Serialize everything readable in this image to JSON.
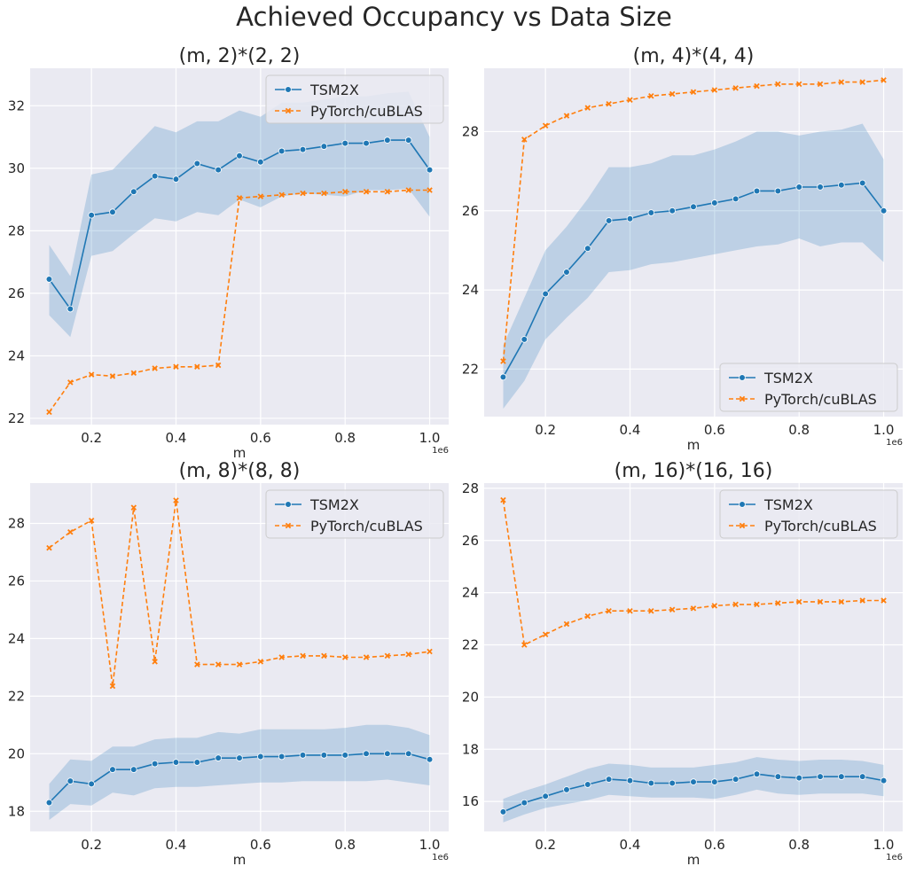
{
  "title": "Achieved Occupancy vs Data Size",
  "colors": {
    "tsm": "#1f77b4",
    "torch": "#ff7f0e",
    "band": "#a5bedb",
    "bg": "#eaeaf2",
    "grid": "#ffffff"
  },
  "chart_data": [
    {
      "type": "line",
      "title": "(m, 2)*(2, 2)",
      "xlabel": "m",
      "x_offset_label": "1e6",
      "x": [
        0.1,
        0.15,
        0.2,
        0.25,
        0.3,
        0.35,
        0.4,
        0.45,
        0.5,
        0.55,
        0.6,
        0.65,
        0.7,
        0.75,
        0.8,
        0.85,
        0.9,
        0.95,
        1.0
      ],
      "xlim": [
        0.055,
        1.045
      ],
      "ylim": [
        21.8,
        33.2
      ],
      "xticks": [
        0.2,
        0.4,
        0.6,
        0.8,
        1.0
      ],
      "yticks": [
        22,
        24,
        26,
        28,
        30,
        32
      ],
      "legend": "top-right",
      "series": [
        {
          "name": "TSM2X",
          "values": [
            26.45,
            25.5,
            28.5,
            28.6,
            29.25,
            29.75,
            29.65,
            30.15,
            29.95,
            30.4,
            30.2,
            30.55,
            30.6,
            30.7,
            30.8,
            30.8,
            30.9,
            30.9,
            29.95
          ],
          "lower": [
            25.3,
            24.6,
            27.2,
            27.35,
            27.9,
            28.4,
            28.3,
            28.6,
            28.5,
            29.0,
            28.75,
            29.1,
            29.2,
            29.15,
            29.1,
            29.3,
            29.3,
            29.35,
            28.45
          ],
          "upper": [
            27.55,
            26.55,
            29.8,
            29.95,
            30.65,
            31.35,
            31.15,
            31.5,
            31.5,
            31.85,
            31.65,
            32.1,
            32.1,
            32.2,
            32.3,
            32.3,
            32.4,
            32.45,
            31.0
          ]
        },
        {
          "name": "PyTorch/cuBLAS",
          "values": [
            22.2,
            23.15,
            23.4,
            23.35,
            23.45,
            23.6,
            23.65,
            23.65,
            23.7,
            29.05,
            29.1,
            29.15,
            29.2,
            29.2,
            29.25,
            29.25,
            29.25,
            29.3,
            29.3
          ]
        }
      ]
    },
    {
      "type": "line",
      "title": "(m, 4)*(4, 4)",
      "xlabel": "m",
      "x_offset_label": "1e6",
      "x": [
        0.1,
        0.15,
        0.2,
        0.25,
        0.3,
        0.35,
        0.4,
        0.45,
        0.5,
        0.55,
        0.6,
        0.65,
        0.7,
        0.75,
        0.8,
        0.85,
        0.9,
        0.95,
        1.0
      ],
      "xlim": [
        0.055,
        1.045
      ],
      "ylim": [
        20.8,
        29.6
      ],
      "xticks": [
        0.2,
        0.4,
        0.6,
        0.8,
        1.0
      ],
      "yticks": [
        22,
        24,
        26,
        28
      ],
      "legend": "bottom-right",
      "series": [
        {
          "name": "TSM2X",
          "values": [
            21.8,
            22.75,
            23.9,
            24.45,
            25.05,
            25.75,
            25.8,
            25.95,
            26.0,
            26.1,
            26.2,
            26.3,
            26.5,
            26.5,
            26.6,
            26.6,
            26.65,
            26.7,
            26.0
          ],
          "lower": [
            21.0,
            21.7,
            22.75,
            23.3,
            23.8,
            24.45,
            24.5,
            24.65,
            24.7,
            24.8,
            24.9,
            25.0,
            25.1,
            25.15,
            25.3,
            25.1,
            25.2,
            25.2,
            24.7
          ],
          "upper": [
            22.6,
            23.8,
            25.0,
            25.6,
            26.3,
            27.1,
            27.1,
            27.2,
            27.4,
            27.4,
            27.55,
            27.75,
            28.0,
            28.0,
            27.9,
            28.0,
            28.05,
            28.2,
            27.3
          ]
        },
        {
          "name": "PyTorch/cuBLAS",
          "values": [
            22.2,
            27.8,
            28.15,
            28.4,
            28.6,
            28.7,
            28.8,
            28.9,
            28.95,
            29.0,
            29.05,
            29.1,
            29.15,
            29.2,
            29.2,
            29.2,
            29.25,
            29.25,
            29.3
          ]
        }
      ]
    },
    {
      "type": "line",
      "title": "(m, 8)*(8, 8)",
      "xlabel": "m",
      "x_offset_label": "1e6",
      "x": [
        0.1,
        0.15,
        0.2,
        0.25,
        0.3,
        0.35,
        0.4,
        0.45,
        0.5,
        0.55,
        0.6,
        0.65,
        0.7,
        0.75,
        0.8,
        0.85,
        0.9,
        0.95,
        1.0
      ],
      "xlim": [
        0.055,
        1.045
      ],
      "ylim": [
        17.3,
        29.4
      ],
      "xticks": [
        0.2,
        0.4,
        0.6,
        0.8,
        1.0
      ],
      "yticks": [
        18,
        20,
        22,
        24,
        26,
        28
      ],
      "legend": "top-right",
      "series": [
        {
          "name": "TSM2X",
          "values": [
            18.3,
            19.05,
            18.95,
            19.45,
            19.45,
            19.65,
            19.7,
            19.7,
            19.85,
            19.85,
            19.9,
            19.9,
            19.95,
            19.95,
            19.95,
            20.0,
            20.0,
            20.0,
            19.8
          ],
          "lower": [
            17.7,
            18.25,
            18.2,
            18.65,
            18.55,
            18.8,
            18.85,
            18.85,
            18.9,
            18.95,
            19.0,
            19.0,
            19.05,
            19.05,
            19.05,
            19.05,
            19.1,
            19.0,
            18.9
          ],
          "upper": [
            18.95,
            19.8,
            19.75,
            20.25,
            20.25,
            20.5,
            20.55,
            20.55,
            20.75,
            20.7,
            20.85,
            20.85,
            20.85,
            20.85,
            20.9,
            21.0,
            21.0,
            20.9,
            20.65
          ]
        },
        {
          "name": "PyTorch/cuBLAS",
          "values": [
            27.15,
            27.7,
            28.1,
            22.35,
            28.55,
            23.2,
            28.8,
            23.1,
            23.1,
            23.1,
            23.2,
            23.35,
            23.4,
            23.4,
            23.35,
            23.35,
            23.4,
            23.45,
            23.55
          ]
        }
      ]
    },
    {
      "type": "line",
      "title": "(m, 16)*(16, 16)",
      "xlabel": "m",
      "x_offset_label": "1e6",
      "x": [
        0.1,
        0.15,
        0.2,
        0.25,
        0.3,
        0.35,
        0.4,
        0.45,
        0.5,
        0.55,
        0.6,
        0.65,
        0.7,
        0.75,
        0.8,
        0.85,
        0.9,
        0.95,
        1.0
      ],
      "xlim": [
        0.055,
        1.045
      ],
      "ylim": [
        14.85,
        28.2
      ],
      "xticks": [
        0.2,
        0.4,
        0.6,
        0.8,
        1.0
      ],
      "yticks": [
        16,
        18,
        20,
        22,
        24,
        26,
        28
      ],
      "legend": "top-right",
      "series": [
        {
          "name": "TSM2X",
          "values": [
            15.6,
            15.95,
            16.2,
            16.45,
            16.65,
            16.85,
            16.8,
            16.7,
            16.7,
            16.75,
            16.75,
            16.85,
            17.05,
            16.95,
            16.9,
            16.95,
            16.95,
            16.95,
            16.8
          ],
          "lower": [
            15.2,
            15.5,
            15.75,
            15.9,
            16.05,
            16.25,
            16.2,
            16.15,
            16.15,
            16.15,
            16.1,
            16.25,
            16.45,
            16.3,
            16.25,
            16.3,
            16.3,
            16.3,
            16.2
          ],
          "upper": [
            16.1,
            16.4,
            16.65,
            16.95,
            17.25,
            17.45,
            17.4,
            17.3,
            17.3,
            17.3,
            17.4,
            17.5,
            17.7,
            17.6,
            17.55,
            17.6,
            17.6,
            17.55,
            17.4
          ]
        },
        {
          "name": "PyTorch/cuBLAS",
          "values": [
            27.55,
            22.0,
            22.4,
            22.8,
            23.1,
            23.3,
            23.3,
            23.3,
            23.35,
            23.4,
            23.5,
            23.55,
            23.55,
            23.6,
            23.65,
            23.65,
            23.65,
            23.7,
            23.7
          ]
        }
      ]
    }
  ]
}
